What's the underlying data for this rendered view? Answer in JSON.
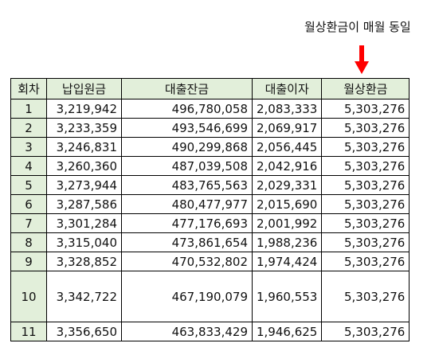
{
  "annotation": {
    "text": "월상환금이 매월 동일",
    "arrow_color": "#ff0000"
  },
  "table": {
    "header_bg": "#e2efda",
    "headers": [
      "회차",
      "납입원금",
      "대출잔금",
      "대출이자",
      "월상환금"
    ],
    "rows": [
      [
        "1",
        "3,219,942",
        "496,780,058",
        "2,083,333",
        "5,303,276"
      ],
      [
        "2",
        "3,233,359",
        "493,546,699",
        "2,069,917",
        "5,303,276"
      ],
      [
        "3",
        "3,246,831",
        "490,299,868",
        "2,056,445",
        "5,303,276"
      ],
      [
        "4",
        "3,260,360",
        "487,039,508",
        "2,042,916",
        "5,303,276"
      ],
      [
        "5",
        "3,273,944",
        "483,765,563",
        "2,029,331",
        "5,303,276"
      ],
      [
        "6",
        "3,287,586",
        "480,477,977",
        "2,015,690",
        "5,303,276"
      ],
      [
        "7",
        "3,301,284",
        "477,176,693",
        "2,001,992",
        "5,303,276"
      ],
      [
        "8",
        "3,315,040",
        "473,861,654",
        "1,988,236",
        "5,303,276"
      ],
      [
        "9",
        "3,328,852",
        "470,532,802",
        "1,974,424",
        "5,303,276"
      ],
      [
        "10",
        "3,342,722",
        "467,190,079",
        "1,960,553",
        "5,303,276"
      ],
      [
        "11",
        "3,356,650",
        "463,833,429",
        "1,946,625",
        "5,303,276"
      ]
    ]
  }
}
